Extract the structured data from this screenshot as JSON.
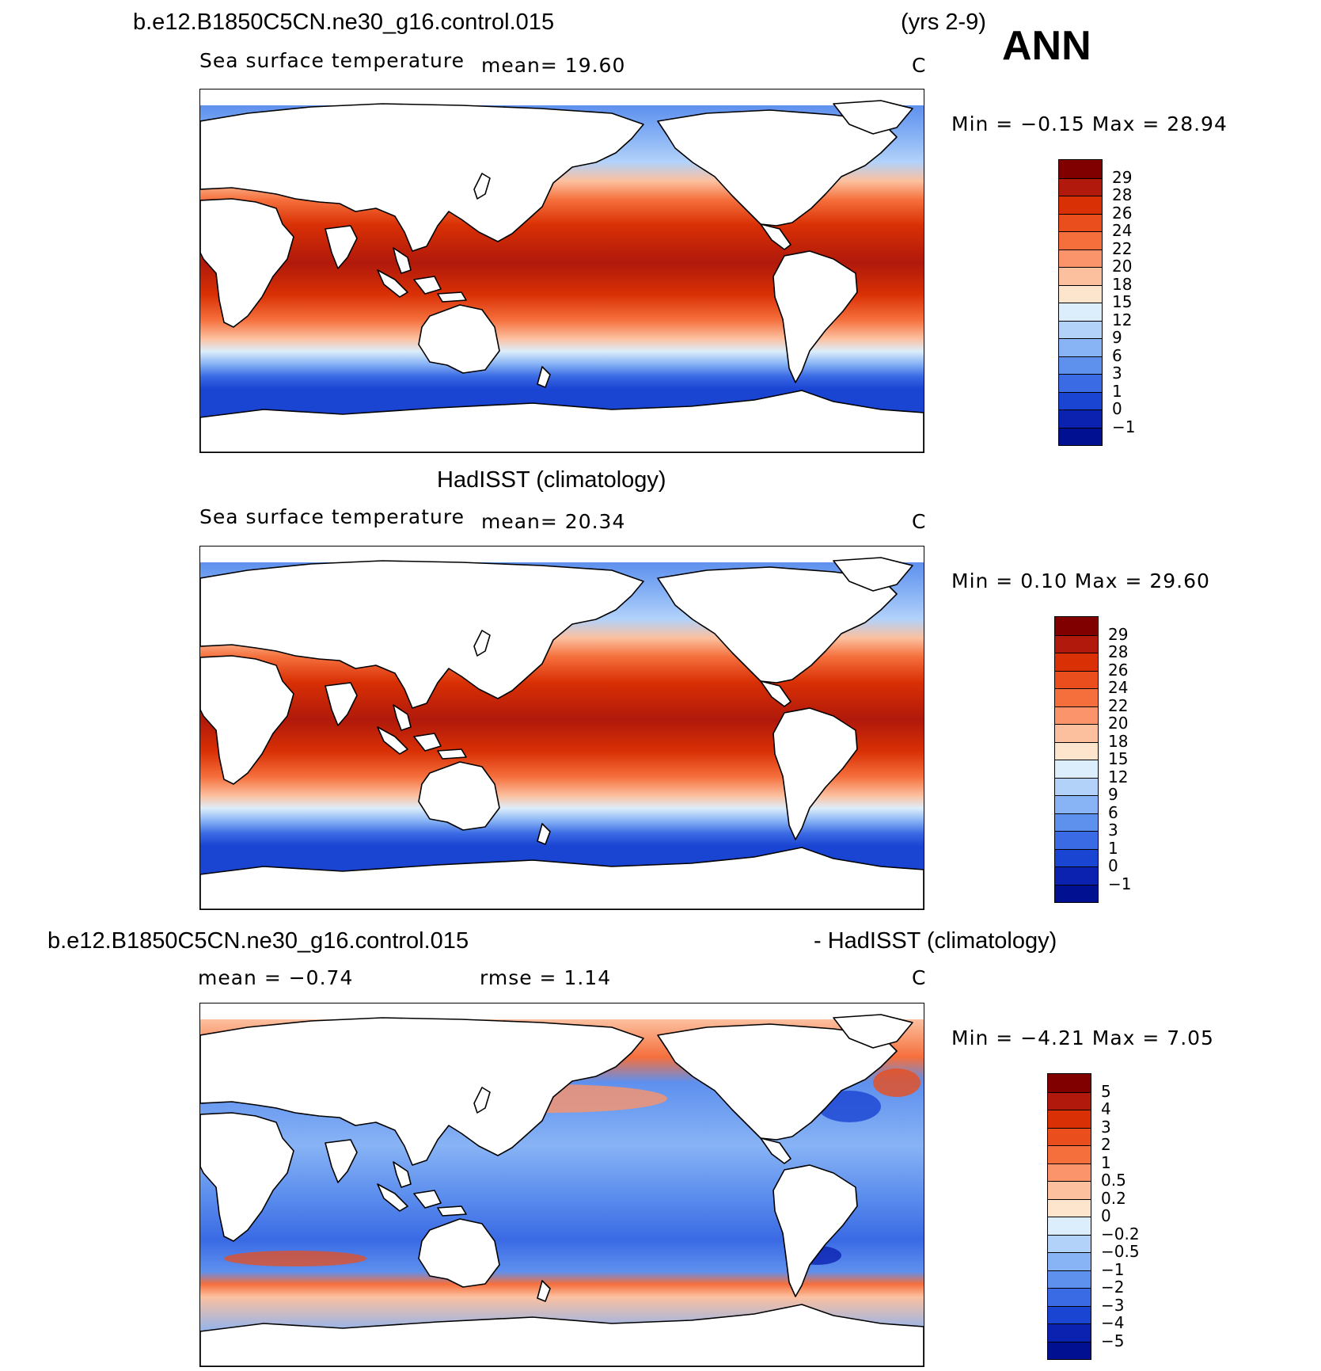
{
  "header": {
    "case_name": "b.e12.B1850C5CN.ne30_g16.control.015",
    "years": "(yrs 2-9)",
    "season": "ANN"
  },
  "panels": [
    {
      "variable": "Sea surface temperature",
      "stat_text": "mean=   19.60",
      "units": "C",
      "minmax": "Min  =    −0.15  Max  =    28.94",
      "colorbar_labels": [
        "29",
        "28",
        "26",
        "24",
        "22",
        "20",
        "18",
        "15",
        "12",
        "9",
        "6",
        "3",
        "1",
        "0",
        "−1"
      ],
      "colors": [
        "#800000",
        "#b0190b",
        "#d93005",
        "#ea4e1c",
        "#f56f3c",
        "#fb946a",
        "#fcc09f",
        "#fde4cc",
        "#dceefb",
        "#b2d2fa",
        "#88b3f5",
        "#5e90ee",
        "#3a6ae4",
        "#1a44d2",
        "#0b22b0",
        "#001090"
      ]
    },
    {
      "title": "HadISST (climatology)",
      "variable": "Sea surface temperature",
      "stat_text": "mean=   20.34",
      "units": "C",
      "minmax": "Min  =     0.10  Max  =    29.60",
      "colorbar_labels": [
        "29",
        "28",
        "26",
        "24",
        "22",
        "20",
        "18",
        "15",
        "12",
        "9",
        "6",
        "3",
        "1",
        "0",
        "−1"
      ],
      "colors": [
        "#800000",
        "#b0190b",
        "#d93005",
        "#ea4e1c",
        "#f56f3c",
        "#fb946a",
        "#fcc09f",
        "#fde4cc",
        "#dceefb",
        "#b2d2fa",
        "#88b3f5",
        "#5e90ee",
        "#3a6ae4",
        "#1a44d2",
        "#0b22b0",
        "#001090"
      ]
    },
    {
      "title_left": "b.e12.B1850C5CN.ne30_g16.control.015",
      "title_right": "- HadISST (climatology)",
      "stat_text": "mean  =    −0.74",
      "rmse_text": "rmse  =     1.14",
      "units": "C",
      "minmax": "Min  =    −4.21  Max  =     7.05",
      "colorbar_labels": [
        "5",
        "4",
        "3",
        "2",
        "1",
        "0.5",
        "0.2",
        "0",
        "−0.2",
        "−0.5",
        "−1",
        "−2",
        "−3",
        "−4",
        "−5"
      ],
      "colors": [
        "#800000",
        "#b0190b",
        "#d93005",
        "#ea4e1c",
        "#f56f3c",
        "#fb946a",
        "#fcc09f",
        "#fde4cc",
        "#dceefb",
        "#b2d2fa",
        "#88b3f5",
        "#5e90ee",
        "#3a6ae4",
        "#1a44d2",
        "#0b22b0",
        "#001090"
      ]
    }
  ]
}
